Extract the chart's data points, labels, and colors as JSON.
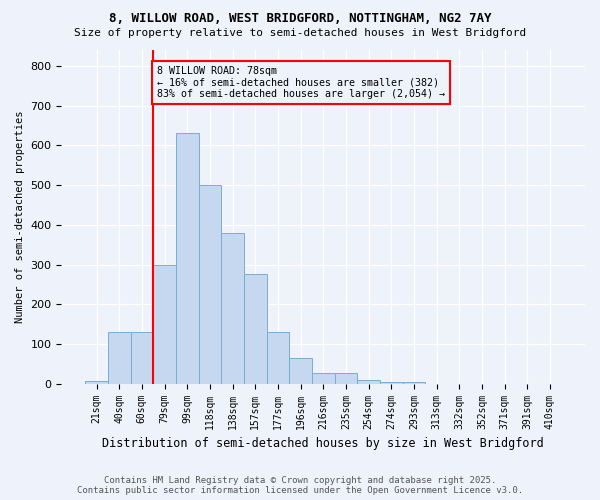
{
  "title1": "8, WILLOW ROAD, WEST BRIDGFORD, NOTTINGHAM, NG2 7AY",
  "title2": "Size of property relative to semi-detached houses in West Bridgford",
  "xlabel": "Distribution of semi-detached houses by size in West Bridgford",
  "ylabel": "Number of semi-detached properties",
  "categories": [
    "21sqm",
    "40sqm",
    "60sqm",
    "79sqm",
    "99sqm",
    "118sqm",
    "138sqm",
    "157sqm",
    "177sqm",
    "196sqm",
    "216sqm",
    "235sqm",
    "254sqm",
    "274sqm",
    "293sqm",
    "313sqm",
    "332sqm",
    "352sqm",
    "371sqm",
    "391sqm",
    "410sqm"
  ],
  "values": [
    8,
    130,
    130,
    300,
    630,
    500,
    380,
    275,
    130,
    65,
    28,
    28,
    10,
    5,
    5,
    0,
    0,
    0,
    0,
    0,
    0
  ],
  "bar_color": "#c5d8f0",
  "bar_edge_color": "#7aadd4",
  "red_line_index": 3,
  "annotation_text": "8 WILLOW ROAD: 78sqm\n← 16% of semi-detached houses are smaller (382)\n83% of semi-detached houses are larger (2,054) →",
  "footer1": "Contains HM Land Registry data © Crown copyright and database right 2025.",
  "footer2": "Contains public sector information licensed under the Open Government Licence v3.0.",
  "bg_color": "#eef2fa",
  "ylim": [
    0,
    840
  ],
  "yticks": [
    0,
    100,
    200,
    300,
    400,
    500,
    600,
    700,
    800
  ]
}
